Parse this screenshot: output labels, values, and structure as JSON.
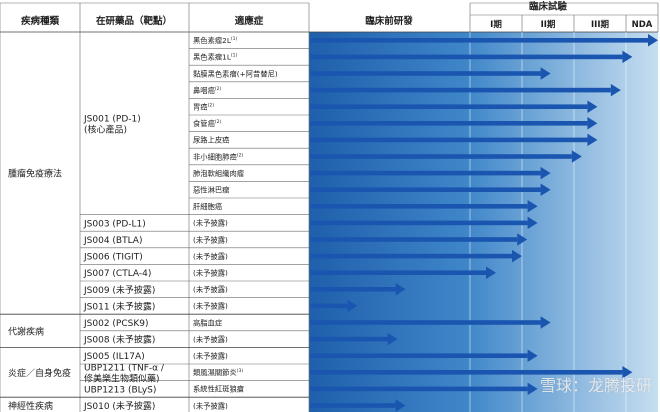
{
  "headers": {
    "category": "疾病種類",
    "drug": "在研藥品（靶點）",
    "indication": "適應症",
    "preclinical": "臨床前研發",
    "clinical": "臨床試驗",
    "phase1": "I期",
    "phase2": "II期",
    "phase3": "III期",
    "nda": "NDA"
  },
  "categories": [
    {
      "name": "腫瘤免疫療法"
    },
    {
      "name": "代謝疾病"
    },
    {
      "name": "炎症／自身免疫"
    },
    {
      "name": "神經性疾病"
    }
  ],
  "drugs": [
    {
      "lines": [
        "JS001 (PD-1)",
        "(核心產品)"
      ]
    },
    {
      "lines": [
        "JS003 (PD-L1)"
      ]
    },
    {
      "lines": [
        "JS004 (BTLA)"
      ]
    },
    {
      "lines": [
        "JS006 (TIGIT)"
      ]
    },
    {
      "lines": [
        "JS007 (CTLA-4)"
      ]
    },
    {
      "lines": [
        "JS009 (未予披露)"
      ]
    },
    {
      "lines": [
        "JS011 (未予披露)"
      ]
    },
    {
      "lines": [
        "JS002 (PCSK9)"
      ]
    },
    {
      "lines": [
        "JS008 (未予披露)"
      ]
    },
    {
      "lines": [
        "JS005 (IL17A)"
      ]
    },
    {
      "lines": [
        "UBP1211 (TNF-α /",
        "修美樂生物類似藥)"
      ]
    },
    {
      "lines": [
        "UBP1213 (BLyS)"
      ]
    },
    {
      "lines": [
        "JS010 (未予披露)"
      ]
    }
  ],
  "watermark": "雪球：龙腾投研",
  "chart_data": {
    "type": "bar",
    "title": "",
    "stages": [
      "臨床前研發",
      "I期",
      "II期",
      "III期",
      "NDA"
    ],
    "note": "progress value: 0–1 = preclinical, 1–2 = Phase I, 2–3 = Phase II, 3–4 = Phase III, 4–5 = NDA",
    "rows": [
      {
        "category": "腫瘤免疫療法",
        "drug": "JS001 (PD-1)",
        "indication": "黑色素瘤2L",
        "sup": "(1)",
        "progress": 5.0
      },
      {
        "category": "腫瘤免疫療法",
        "drug": "JS001 (PD-1)",
        "indication": "黑色素瘤1L",
        "sup": "(1)",
        "progress": 4.2
      },
      {
        "category": "腫瘤免疫療法",
        "drug": "JS001 (PD-1)",
        "indication": "黏膜黑色素瘤(+阿昔替尼)",
        "sup": "",
        "progress": 2.55
      },
      {
        "category": "腫瘤免疫療法",
        "drug": "JS001 (PD-1)",
        "indication": "鼻咽癌",
        "sup": "(2)",
        "progress": 3.9
      },
      {
        "category": "腫瘤免疫療法",
        "drug": "JS001 (PD-1)",
        "indication": "胃癌",
        "sup": "(2)",
        "progress": 3.45
      },
      {
        "category": "腫瘤免疫療法",
        "drug": "JS001 (PD-1)",
        "indication": "食管癌",
        "sup": "(2)",
        "progress": 3.45
      },
      {
        "category": "腫瘤免疫療法",
        "drug": "JS001 (PD-1)",
        "indication": "尿路上皮癌",
        "sup": "",
        "progress": 3.45
      },
      {
        "category": "腫瘤免疫療法",
        "drug": "JS001 (PD-1)",
        "indication": "非小細胞肺癌",
        "sup": "(2)",
        "progress": 3.15
      },
      {
        "category": "腫瘤免疫療法",
        "drug": "JS001 (PD-1)",
        "indication": "肺泡軟組織肉瘤",
        "sup": "",
        "progress": 2.55
      },
      {
        "category": "腫瘤免疫療法",
        "drug": "JS001 (PD-1)",
        "indication": "惡性淋巴瘤",
        "sup": "",
        "progress": 2.55
      },
      {
        "category": "腫瘤免疫療法",
        "drug": "JS001 (PD-1)",
        "indication": "肝細胞癌",
        "sup": "",
        "progress": 2.3
      },
      {
        "category": "腫瘤免疫療法",
        "drug": "JS003 (PD-L1)",
        "indication": "(未予披露)",
        "sup": "",
        "progress": 2.3
      },
      {
        "category": "腫瘤免疫療法",
        "drug": "JS004 (BTLA)",
        "indication": "(未予披露)",
        "sup": "",
        "progress": 2.1
      },
      {
        "category": "腫瘤免疫療法",
        "drug": "JS006 (TIGIT)",
        "indication": "(未予披露)",
        "sup": "",
        "progress": 2.0
      },
      {
        "category": "腫瘤免疫療法",
        "drug": "JS007 (CTLA-4)",
        "indication": "(未予披露)",
        "sup": "",
        "progress": 1.5
      },
      {
        "category": "腫瘤免疫療法",
        "drug": "JS009 (未予披露)",
        "indication": "(未予披露)",
        "sup": "",
        "progress": 0.6
      },
      {
        "category": "腫瘤免疫療法",
        "drug": "JS011 (未予披露)",
        "indication": "(未予披露)",
        "sup": "",
        "progress": 0.3
      },
      {
        "category": "代謝疾病",
        "drug": "JS002 (PCSK9)",
        "indication": "高脂血症",
        "sup": "",
        "progress": 2.55
      },
      {
        "category": "代謝疾病",
        "drug": "JS008 (未予披露)",
        "indication": "(未予披露)",
        "sup": "",
        "progress": 0.55
      },
      {
        "category": "炎症／自身免疫",
        "drug": "JS005 (IL17A)",
        "indication": "(未予披露)",
        "sup": "",
        "progress": 2.3
      },
      {
        "category": "炎症／自身免疫",
        "drug": "UBP1211 (TNF-α / 修美樂生物類似藥)",
        "indication": "類風濕關節炎",
        "sup": "(3)",
        "progress": 4.2
      },
      {
        "category": "炎症／自身免疫",
        "drug": "UBP1213 (BLyS)",
        "indication": "系統性紅斑狼瘡",
        "sup": "",
        "progress": 2.3
      },
      {
        "category": "神經性疾病",
        "drug": "JS010 (未予披露)",
        "indication": "(未予披露)",
        "sup": "",
        "progress": 0.6
      }
    ]
  }
}
